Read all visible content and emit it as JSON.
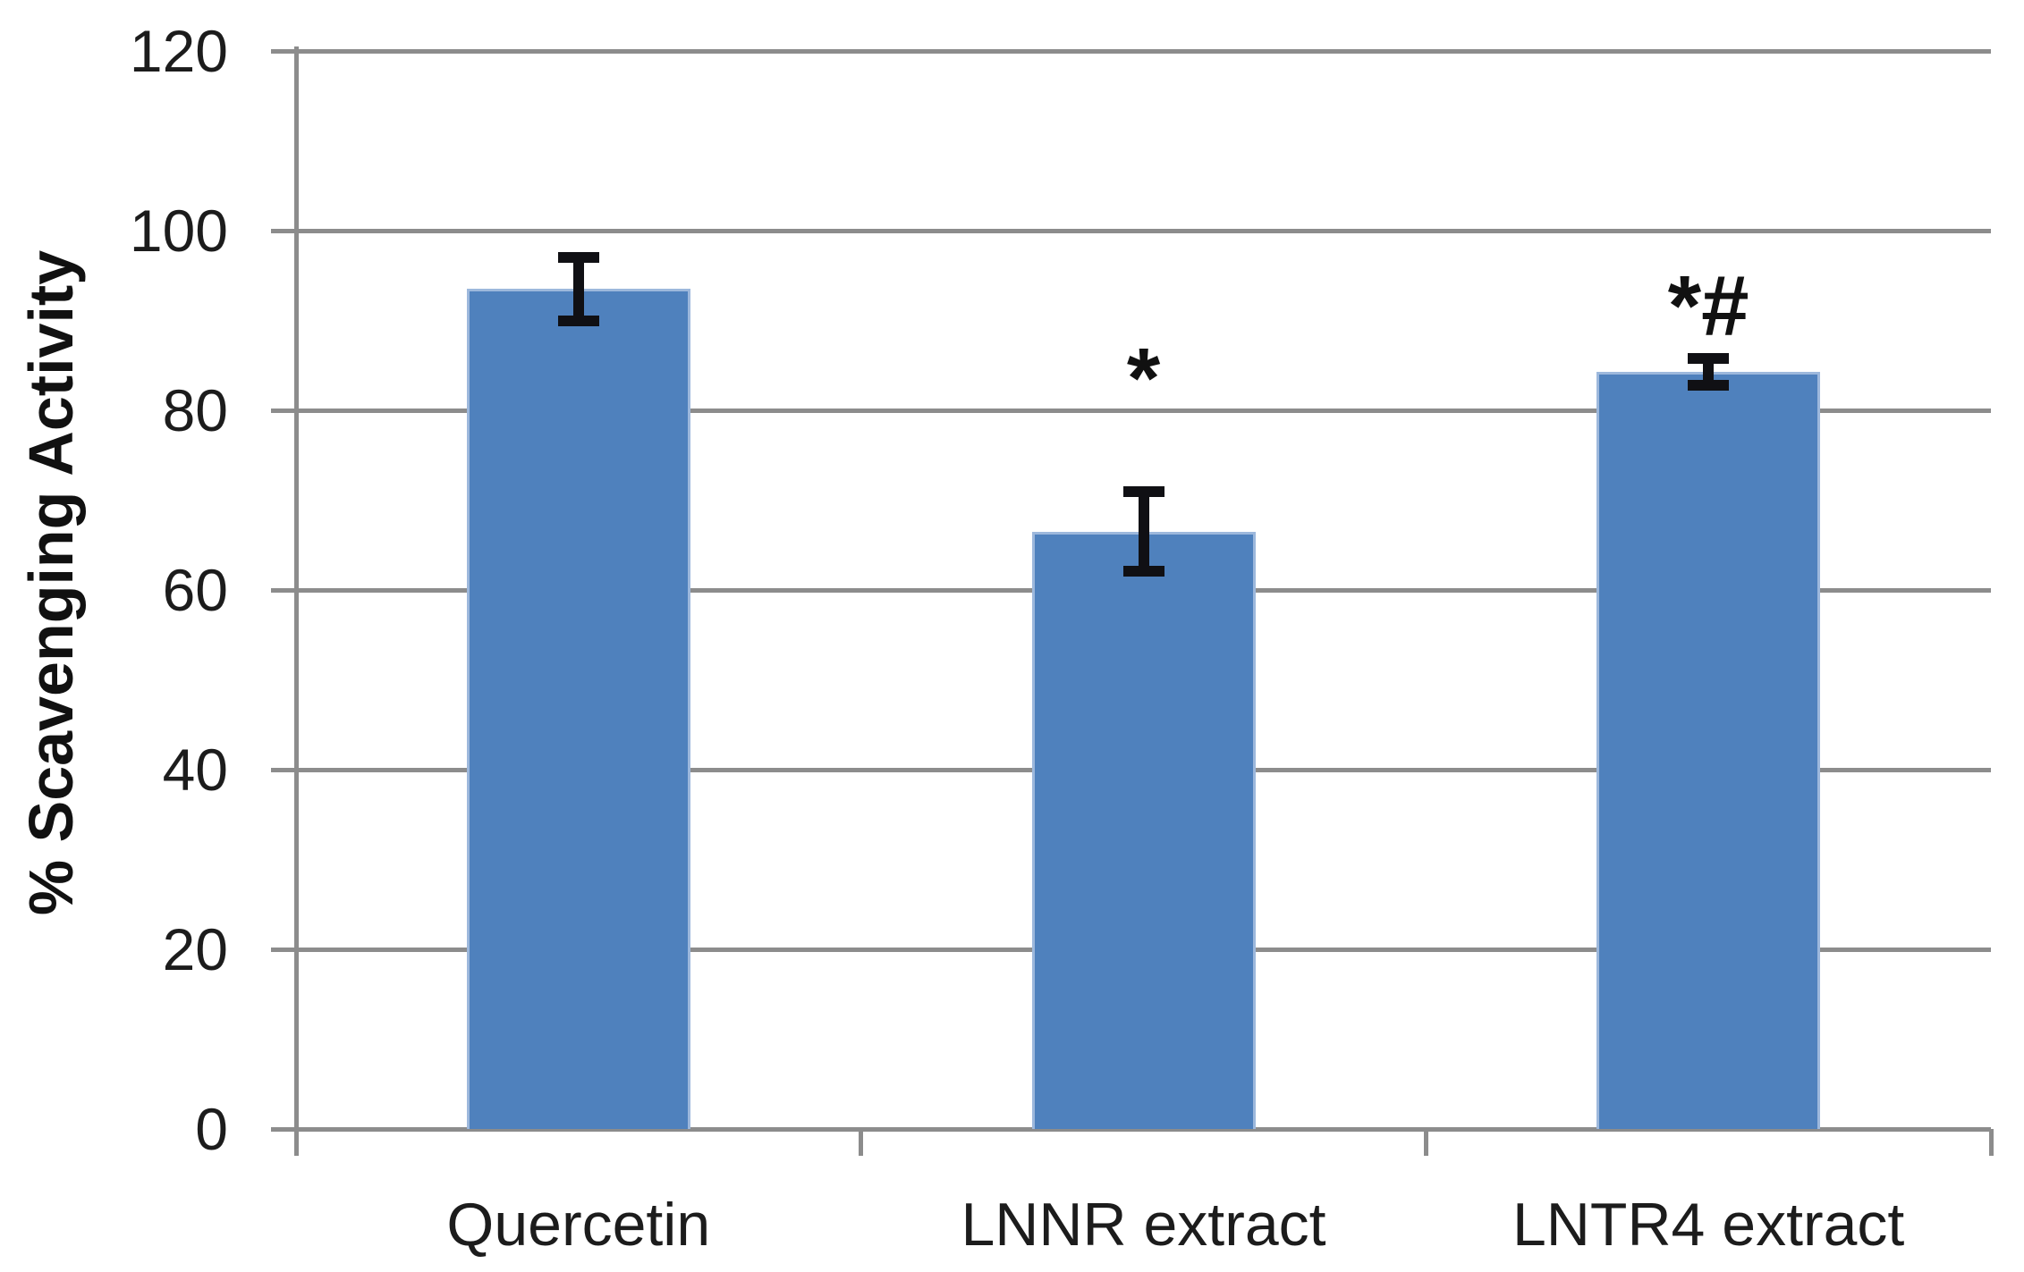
{
  "chart_data": {
    "type": "bar",
    "title": "",
    "categories": [
      "Quercetin",
      "LNNR extract",
      "LNTR4 extract"
    ],
    "values": [
      93.5,
      66.5,
      84.3
    ],
    "error_bars": [
      3.5,
      4.4,
      1.5
    ],
    "annotations": [
      {
        "category": "LNNR extract",
        "text": "*",
        "y": 83.5
      },
      {
        "category": "LNTR4 extract",
        "text": "*#",
        "y": 91.5
      }
    ],
    "xlabel": "",
    "ylabel": "% Scavenging Activity",
    "ylim": [
      0,
      120
    ],
    "yticks": [
      0,
      20,
      40,
      60,
      80,
      100,
      120
    ],
    "grid": true,
    "legend": false,
    "gridline_color": "#8c8c8c",
    "bar_color": "#4f81bd",
    "bar_border_color": "#9db8dc",
    "error_bar_color": "#101014",
    "text_color": "#1c1c1c"
  }
}
